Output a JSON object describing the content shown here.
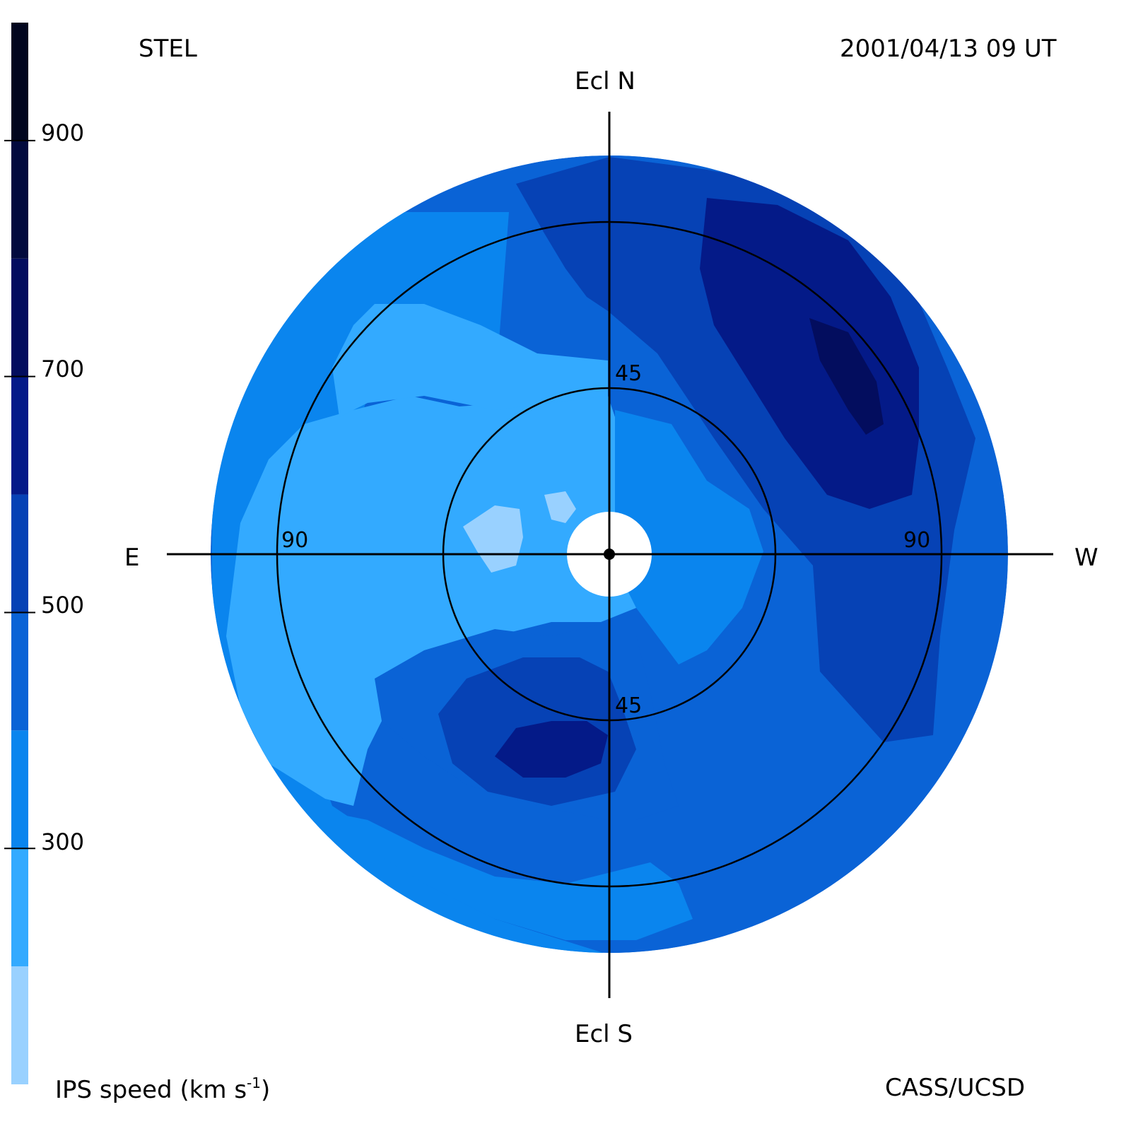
{
  "header": {
    "instrument": "STEL",
    "timestamp": "2001/04/13 09 UT"
  },
  "footer": {
    "colorbar_title": "IPS speed (km s",
    "colorbar_title_exp": "-1",
    "colorbar_title_close": ")",
    "credit": "CASS/UCSD"
  },
  "directions": {
    "north": "Ecl N",
    "south": "Ecl S",
    "east": "E",
    "west": "W"
  },
  "rings": {
    "inner_top": "45",
    "inner_bottom": "45",
    "outer_left": "90",
    "outer_right": "90"
  },
  "colorbar": {
    "ticks": [
      "900",
      "700",
      "500",
      "300"
    ],
    "tick_values": [
      900,
      700,
      500,
      300
    ],
    "range": [
      100,
      1000
    ],
    "bands": [
      {
        "min": 100,
        "max": 200,
        "color": "#99d1ff"
      },
      {
        "min": 200,
        "max": 300,
        "color": "#33aaff"
      },
      {
        "min": 300,
        "max": 400,
        "color": "#0a85ee"
      },
      {
        "min": 400,
        "max": 500,
        "color": "#0a63d6"
      },
      {
        "min": 500,
        "max": 600,
        "color": "#0642b5"
      },
      {
        "min": 600,
        "max": 700,
        "color": "#041a88"
      },
      {
        "min": 700,
        "max": 800,
        "color": "#030d5e"
      },
      {
        "min": 800,
        "max": 900,
        "color": "#020a3e"
      },
      {
        "min": 900,
        "max": 1000,
        "color": "#01061f"
      }
    ]
  }
}
